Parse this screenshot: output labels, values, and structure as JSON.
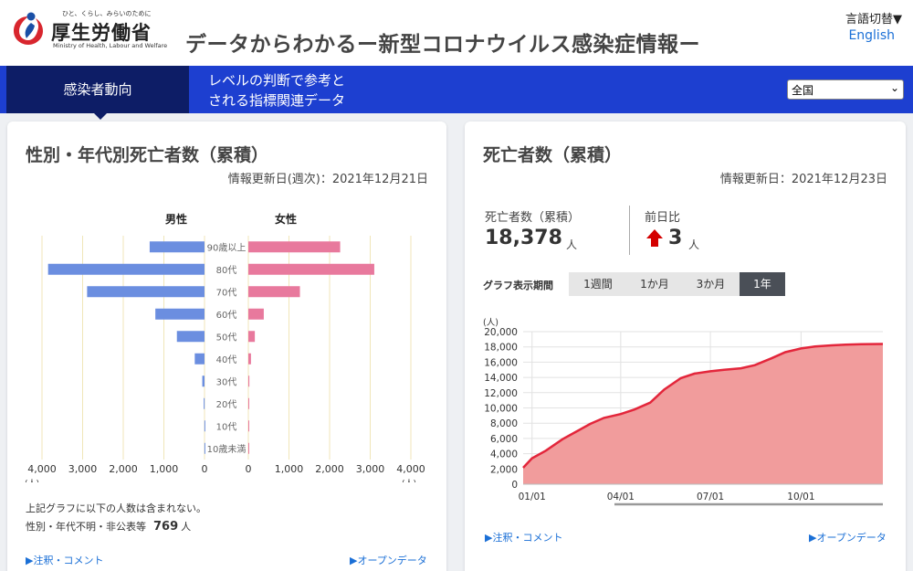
{
  "header": {
    "logo_tagline": "ひと、くらし、みらいのために",
    "logo_name": "厚生労働省",
    "logo_english": "Ministry of Health, Labour and Welfare",
    "site_title": "データからわかるー新型コロナウイルス感染症情報ー",
    "lang_switch_label": "言語切替▼",
    "lang_english_link": "English"
  },
  "nav": {
    "tabs": [
      {
        "label": "感染者動向",
        "active": true
      },
      {
        "label_line1": "レベルの判断で参考と",
        "label_line2": "される指標関連データ",
        "active": false
      }
    ],
    "region_select": {
      "selected": "全国"
    }
  },
  "left_card": {
    "title": "性別・年代別死亡者数（累積）",
    "updated": "情報更新日(週次)：2021年12月21日",
    "note_line1": "上記グラフに以下の人数は含まれない。",
    "note_line2_label": "性別・年代不明・非公表等",
    "note_line2_value": "769",
    "note_line2_unit": "人",
    "link_notes": "▶注釈・コメント",
    "link_opendata": "▶オープンデータ"
  },
  "right_card": {
    "title": "死亡者数（累積）",
    "updated": "情報更新日：2021年12月23日",
    "stat_label": "死亡者数（累積）",
    "stat_value": "18,378",
    "stat_unit": "人",
    "diff_label": "前日比",
    "diff_value": "3",
    "diff_unit": "人",
    "period_label": "グラフ表示期間",
    "period_buttons": [
      "1週間",
      "1か月",
      "3か月",
      "1年"
    ],
    "period_active": "1年",
    "link_notes": "▶注釈・コメント",
    "link_opendata": "▶オープンデータ"
  },
  "colors": {
    "male": "#6b8ee0",
    "female": "#e8799d",
    "area_fill": "#f19c9c",
    "area_line": "#e3263b",
    "nav_blue": "#1d3fd0",
    "nav_dark": "#0d1d66"
  },
  "chart_data": [
    {
      "type": "bar",
      "orientation": "horizontal",
      "layout": "population-pyramid",
      "title": "",
      "categories": [
        "90歳以上",
        "80代",
        "70代",
        "60代",
        "50代",
        "40代",
        "30代",
        "20代",
        "10代",
        "10歳未満"
      ],
      "series": [
        {
          "name": "男性",
          "values": [
            1350,
            3850,
            2890,
            1210,
            680,
            240,
            55,
            20,
            3,
            2
          ]
        },
        {
          "name": "女性",
          "values": [
            2260,
            3100,
            1270,
            380,
            160,
            65,
            25,
            8,
            2,
            1
          ]
        }
      ],
      "x_ticks_left": [
        "4,000",
        "3,000",
        "2,000",
        "1,000",
        "0"
      ],
      "x_ticks_right": [
        "0",
        "1,000",
        "2,000",
        "3,000",
        "4,000"
      ],
      "xlim": [
        0,
        4000
      ],
      "xlabel": "(人)",
      "grid": true
    },
    {
      "type": "area",
      "title": "",
      "ylabel": "(人)",
      "ylim": [
        0,
        20000
      ],
      "y_ticks": [
        "0",
        "2,000",
        "4,000",
        "6,000",
        "8,000",
        "10,000",
        "12,000",
        "14,000",
        "16,000",
        "18,000",
        "20,000"
      ],
      "x_ticks": [
        "01/01",
        "04/01",
        "07/01",
        "10/01"
      ],
      "x": [
        "2020-12-23",
        "2021-01-01",
        "2021-01-15",
        "2021-02-01",
        "2021-02-15",
        "2021-03-01",
        "2021-03-15",
        "2021-04-01",
        "2021-04-15",
        "2021-05-01",
        "2021-05-15",
        "2021-06-01",
        "2021-06-15",
        "2021-07-01",
        "2021-07-15",
        "2021-08-01",
        "2021-08-15",
        "2021-09-01",
        "2021-09-15",
        "2021-10-01",
        "2021-10-15",
        "2021-11-01",
        "2021-11-15",
        "2021-12-01",
        "2021-12-23"
      ],
      "values": [
        2150,
        3400,
        4400,
        5900,
        6900,
        7900,
        8700,
        9200,
        9800,
        10700,
        12400,
        13900,
        14500,
        14800,
        15000,
        15200,
        15600,
        16500,
        17300,
        17800,
        18050,
        18200,
        18300,
        18350,
        18378
      ],
      "grid": true
    }
  ]
}
